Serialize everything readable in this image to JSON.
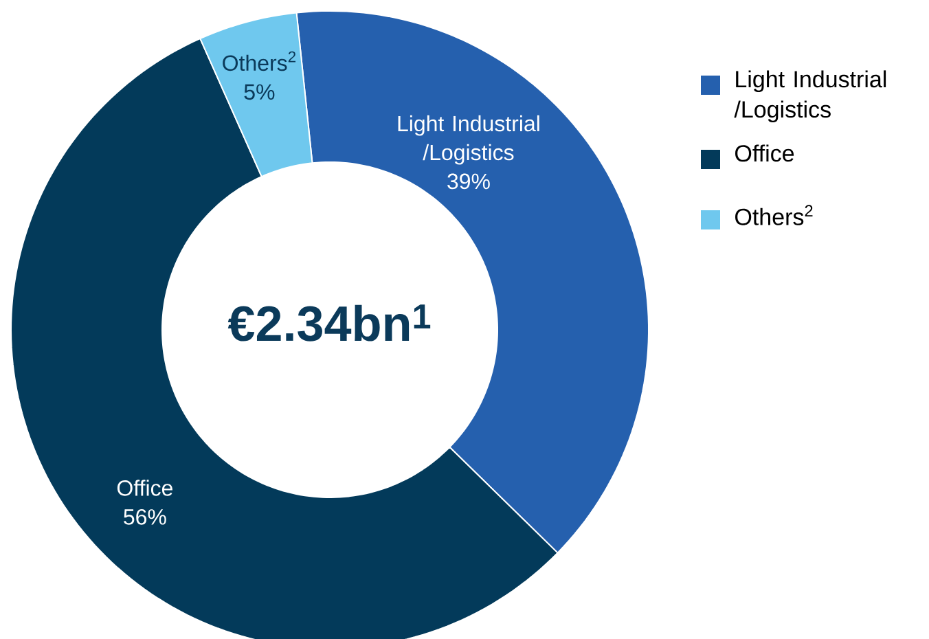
{
  "chart_data": {
    "type": "donut",
    "categories": [
      "Light Industrial /Logistics",
      "Office",
      "Others$^{2}$"
    ],
    "values": [
      39,
      56,
      5
    ],
    "value_labels": [
      "39%",
      "56%",
      "5%"
    ],
    "colors": [
      "#2560ae",
      "#033a5a",
      "#6fc8ee"
    ],
    "annotations": [
      "€2.34bn$^{1}$"
    ],
    "legend": "top right"
  }
}
